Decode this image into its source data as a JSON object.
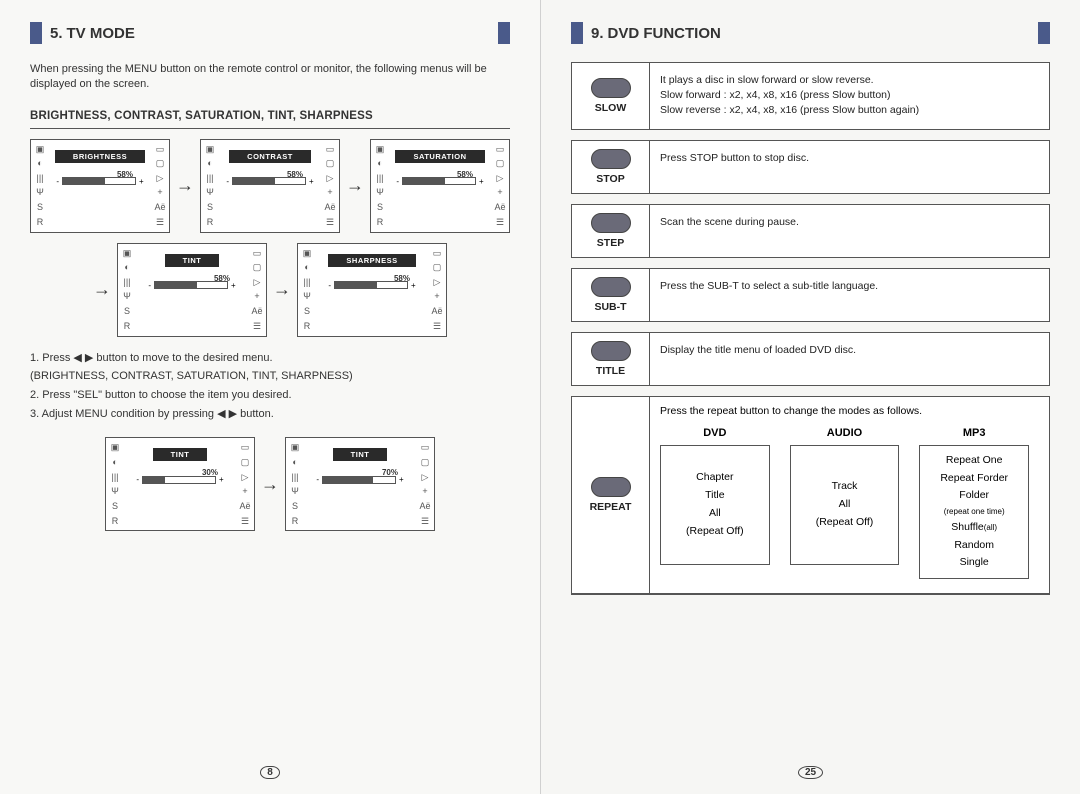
{
  "left": {
    "section_no": "5.",
    "section_title": "TV MODE",
    "intro": "When pressing the MENU button on the remote control or monitor, the following menus will be displayed on the screen.",
    "sub_title": "BRIGHTNESS, CONTRAST, SATURATION, TINT, SHARPNESS",
    "osd_row1": [
      {
        "label": "BRIGHTNESS",
        "pct": "58%",
        "fill_pct": 58
      },
      {
        "label": "CONTRAST",
        "pct": "58%",
        "fill_pct": 58
      },
      {
        "label": "SATURATION",
        "pct": "58%",
        "fill_pct": 58
      }
    ],
    "osd_row2": [
      {
        "label": "TINT",
        "pct": "58%",
        "fill_pct": 58
      },
      {
        "label": "SHARPNESS",
        "pct": "58%",
        "fill_pct": 58
      }
    ],
    "instr1": "1. Press ◀  ▶ button to move to the desired menu.",
    "instr1b": "(BRIGHTNESS, CONTRAST, SATURATION, TINT, SHARPNESS)",
    "instr2": "2. Press \"SEL\" button to choose the item you desired.",
    "instr3": "3. Adjust MENU condition by pressing ◀  ▶ button.",
    "osd_row3": [
      {
        "label": "TINT",
        "pct": "30%",
        "fill_pct": 30
      },
      {
        "label": "TINT",
        "pct": "70%",
        "fill_pct": 70
      }
    ],
    "page_num": "8",
    "osd_side_left": [
      "▣",
      "◐",
      "|||",
      "Ψ",
      "S",
      "R"
    ],
    "osd_side_right": [
      "▭",
      "▢",
      "▷",
      "+",
      "Aё",
      "☰"
    ]
  },
  "right": {
    "section_no": "9.",
    "section_title": "DVD FUNCTION",
    "funcs": [
      {
        "name": "SLOW",
        "desc": "It plays a disc in slow forward or slow reverse.\nSlow forward : x2, x4, x8, x16 (press Slow button)\nSlow reverse : x2, x4, x8, x16 (press Slow button again)"
      },
      {
        "name": "STOP",
        "desc": "Press STOP button to stop disc."
      },
      {
        "name": "STEP",
        "desc": "Scan the scene during pause."
      },
      {
        "name": "SUB-T",
        "desc": "Press the SUB-T to select a sub-title language."
      },
      {
        "name": "TITLE",
        "desc": "Display the title menu of loaded DVD disc."
      }
    ],
    "repeat": {
      "name": "REPEAT",
      "desc": "Press the repeat button to change the modes as follows.",
      "cols": [
        {
          "head": "DVD",
          "items": [
            "Chapter",
            "Title",
            "All",
            "(Repeat Off)"
          ]
        },
        {
          "head": "AUDIO",
          "items": [
            "Track",
            "All",
            "(Repeat Off)"
          ]
        },
        {
          "head": "MP3",
          "items": [
            "Repeat One",
            "Repeat Forder",
            "Folder",
            "(repeat one time)",
            "Shuffle(all)",
            "Random",
            "Single"
          ]
        }
      ]
    },
    "page_num": "25"
  },
  "colors": {
    "header_bar": "#4a5a8a",
    "osd_band": "#2a2a2a",
    "text": "#333333",
    "border": "#555555",
    "button_pic": "#6a6a78"
  }
}
